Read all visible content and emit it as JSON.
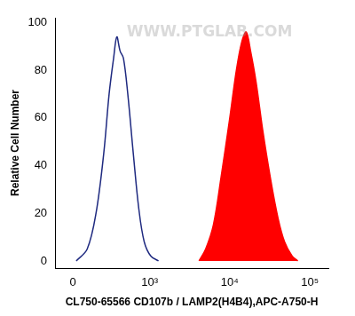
{
  "chart_data": {
    "type": "line",
    "x_label": "CL750-65566 CD107b / LAMP2(H4B4),APC-A750-H",
    "y_label": "Relative Cell Number",
    "annotations": [
      "WWW.PTGLAB.COM"
    ],
    "series": [
      {
        "color": "#1f2a80",
        "fill": false,
        "x": [
          21,
          94,
          159,
          224,
          276,
          324,
          362,
          404,
          450,
          516,
          612,
          722,
          850,
          1033,
          1292
        ],
        "values": [
          0,
          5,
          20,
          45,
          70,
          85,
          94,
          88,
          85,
          70,
          45,
          22,
          8,
          2,
          0
        ]
      },
      {
        "color": "#ff0000",
        "fill": true,
        "x": [
          4160,
          5030,
          6270,
          7820,
          10050,
          12140,
          14200,
          16120,
          18270,
          21390,
          25820,
          32160,
          40100,
          48440,
          60350,
          70670
        ],
        "values": [
          0,
          5,
          15,
          35,
          60,
          80,
          92,
          96,
          88,
          75,
          55,
          35,
          18,
          8,
          2,
          0
        ]
      }
    ],
    "xlim": [
      -120,
      170000
    ],
    "xticks": [
      0,
      {
        "value": 1000,
        "label": "10³"
      },
      {
        "value": 10000,
        "label": "10⁴"
      },
      {
        "value": 100000,
        "label": "10⁵"
      }
    ],
    "ylim": [
      -3,
      102
    ],
    "yticks": [
      0,
      20,
      40,
      60,
      80,
      100
    ],
    "grid": false
  }
}
